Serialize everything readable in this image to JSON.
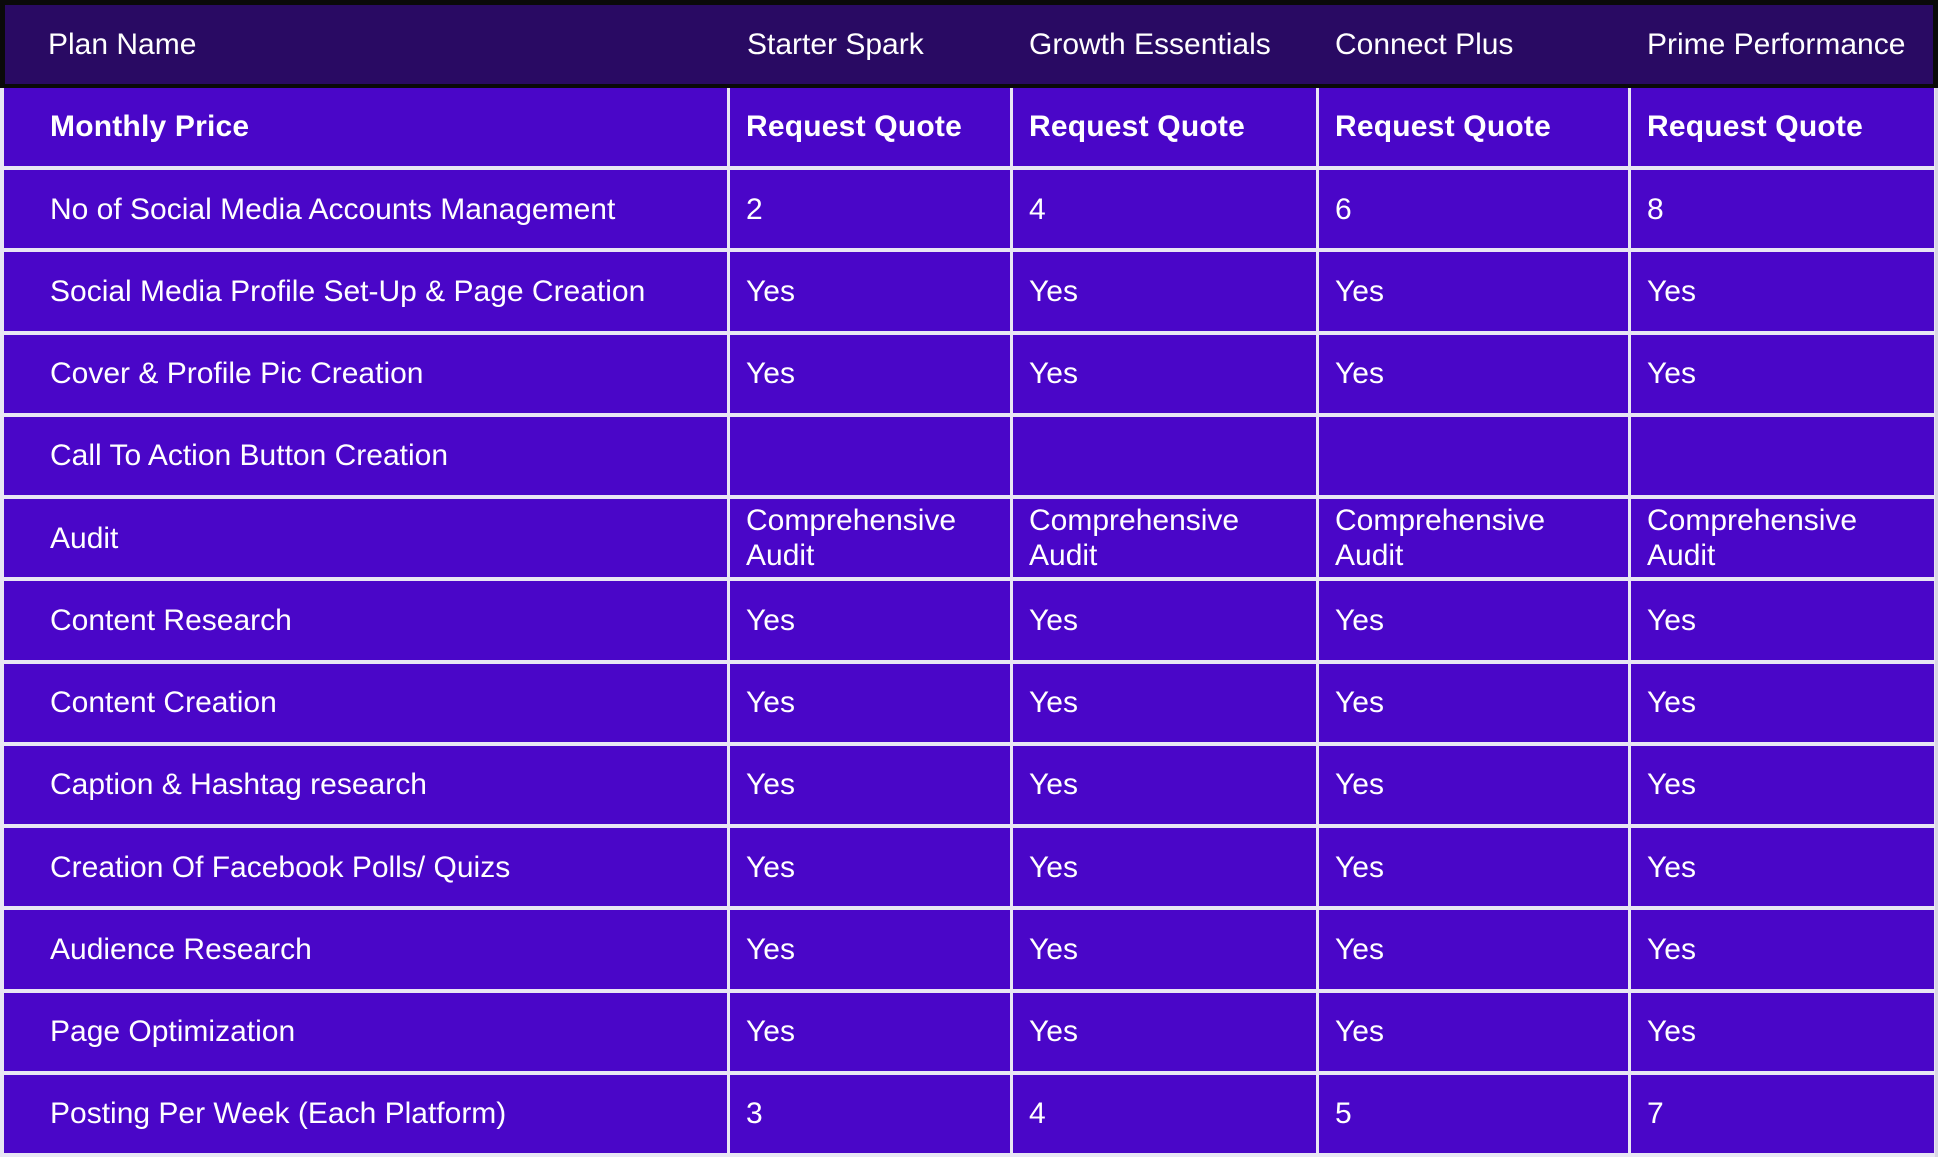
{
  "table": {
    "colors": {
      "header_background": "#290A63",
      "cell_background": "#4A06C8",
      "divider": "#E9E6F4",
      "text": "#FFFFFF",
      "header_border": "#0A0A0A"
    },
    "header": {
      "label": "Plan Name",
      "plans": [
        "Starter Spark",
        "Growth Essentials",
        "Connect Plus",
        "Prime Performance"
      ]
    },
    "rows": [
      {
        "feature": "Monthly Price",
        "bold": true,
        "values": [
          "Request Quote",
          "Request Quote",
          "Request Quote",
          "Request Quote"
        ]
      },
      {
        "feature": "No of Social Media Accounts Management",
        "bold": false,
        "values": [
          "2",
          "4",
          "6",
          "8"
        ]
      },
      {
        "feature": "Social Media Profile Set-Up & Page Creation",
        "bold": false,
        "values": [
          "Yes",
          "Yes",
          "Yes",
          "Yes"
        ]
      },
      {
        "feature": "Cover & Profile Pic Creation",
        "bold": false,
        "values": [
          "Yes",
          "Yes",
          "Yes",
          "Yes"
        ]
      },
      {
        "feature": "Call To Action Button Creation",
        "bold": false,
        "values": [
          "",
          "",
          "",
          ""
        ]
      },
      {
        "feature": "Audit",
        "bold": false,
        "values": [
          "Comprehensive\nAudit",
          "Comprehensive\nAudit",
          "Comprehensive\nAudit",
          "Comprehensive\nAudit"
        ]
      },
      {
        "feature": "Content Research",
        "bold": false,
        "values": [
          "Yes",
          "Yes",
          "Yes",
          "Yes"
        ]
      },
      {
        "feature": "Content Creation",
        "bold": false,
        "values": [
          "Yes",
          "Yes",
          "Yes",
          "Yes"
        ]
      },
      {
        "feature": "Caption & Hashtag research",
        "bold": false,
        "values": [
          "Yes",
          "Yes",
          "Yes",
          "Yes"
        ]
      },
      {
        "feature": "Creation Of Facebook Polls/ Quizs",
        "bold": false,
        "values": [
          "Yes",
          "Yes",
          "Yes",
          "Yes"
        ]
      },
      {
        "feature": "Audience Research",
        "bold": false,
        "values": [
          "Yes",
          "Yes",
          "Yes",
          "Yes"
        ]
      },
      {
        "feature": "Page Optimization",
        "bold": false,
        "values": [
          "Yes",
          "Yes",
          "Yes",
          "Yes"
        ]
      },
      {
        "feature": "Posting Per Week (Each Platform)",
        "bold": false,
        "values": [
          "3",
          "4",
          "5",
          "7"
        ]
      }
    ]
  }
}
